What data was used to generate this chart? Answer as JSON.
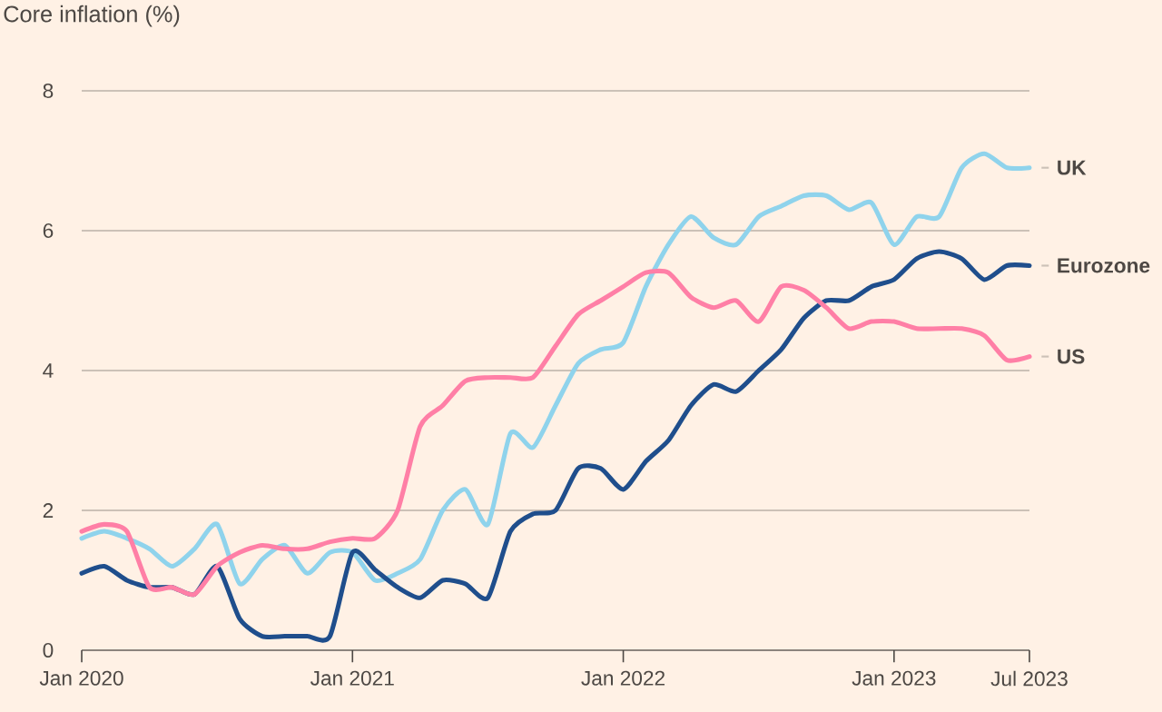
{
  "chart_data": {
    "type": "line",
    "title": "Core inflation (%)",
    "x": [
      "2020-01",
      "2020-02",
      "2020-03",
      "2020-04",
      "2020-05",
      "2020-06",
      "2020-07",
      "2020-08",
      "2020-09",
      "2020-10",
      "2020-11",
      "2020-12",
      "2021-01",
      "2021-02",
      "2021-03",
      "2021-04",
      "2021-05",
      "2021-06",
      "2021-07",
      "2021-08",
      "2021-09",
      "2021-10",
      "2021-11",
      "2021-12",
      "2022-01",
      "2022-02",
      "2022-03",
      "2022-04",
      "2022-05",
      "2022-06",
      "2022-07",
      "2022-08",
      "2022-09",
      "2022-10",
      "2022-11",
      "2022-12",
      "2023-01",
      "2023-02",
      "2023-03",
      "2023-04",
      "2023-05",
      "2023-06",
      "2023-07"
    ],
    "series": [
      {
        "name": "UK",
        "color": "#8fd3ec",
        "values": [
          1.6,
          1.7,
          1.6,
          1.45,
          1.2,
          1.45,
          1.8,
          0.95,
          1.3,
          1.5,
          1.1,
          1.4,
          1.4,
          1.0,
          1.1,
          1.3,
          2.0,
          2.3,
          1.8,
          3.1,
          2.9,
          3.5,
          4.1,
          4.3,
          4.4,
          5.2,
          5.8,
          6.2,
          5.9,
          5.8,
          6.2,
          6.35,
          6.5,
          6.5,
          6.3,
          6.4,
          5.8,
          6.2,
          6.2,
          6.9,
          7.1,
          6.9,
          6.9
        ]
      },
      {
        "name": "Eurozone",
        "color": "#1f4e8c",
        "values": [
          1.1,
          1.2,
          1.0,
          0.9,
          0.9,
          0.8,
          1.2,
          0.45,
          0.2,
          0.2,
          0.2,
          0.2,
          1.4,
          1.15,
          0.9,
          0.75,
          1.0,
          0.95,
          0.75,
          1.7,
          1.95,
          2.0,
          2.6,
          2.6,
          2.3,
          2.7,
          3.0,
          3.5,
          3.8,
          3.7,
          4.0,
          4.3,
          4.75,
          5.0,
          5.0,
          5.2,
          5.3,
          5.6,
          5.7,
          5.6,
          5.3,
          5.5,
          5.5
        ]
      },
      {
        "name": "US",
        "color": "#ff7fa6",
        "values": [
          1.7,
          1.8,
          1.7,
          0.9,
          0.9,
          0.8,
          1.2,
          1.4,
          1.5,
          1.45,
          1.45,
          1.55,
          1.6,
          1.6,
          2.0,
          3.2,
          3.5,
          3.85,
          3.9,
          3.9,
          3.9,
          4.35,
          4.8,
          5.0,
          5.2,
          5.4,
          5.4,
          5.05,
          4.9,
          5.0,
          4.7,
          5.2,
          5.15,
          4.9,
          4.6,
          4.7,
          4.7,
          4.6,
          4.6,
          4.6,
          4.5,
          4.15,
          4.2
        ]
      }
    ],
    "xlim": [
      "2020-01",
      "2023-07"
    ],
    "xticks": [
      {
        "value": "2020-01",
        "label": "Jan 2020"
      },
      {
        "value": "2021-01",
        "label": "Jan 2021"
      },
      {
        "value": "2022-01",
        "label": "Jan 2022"
      },
      {
        "value": "2023-01",
        "label": "Jan 2023"
      },
      {
        "value": "2023-07",
        "label": "Jul 2023"
      }
    ],
    "ylim": [
      0,
      8
    ],
    "yticks": [
      0,
      2,
      4,
      6,
      8
    ],
    "grid": "y",
    "legend": false,
    "marker": "none",
    "line_style": "solid"
  }
}
